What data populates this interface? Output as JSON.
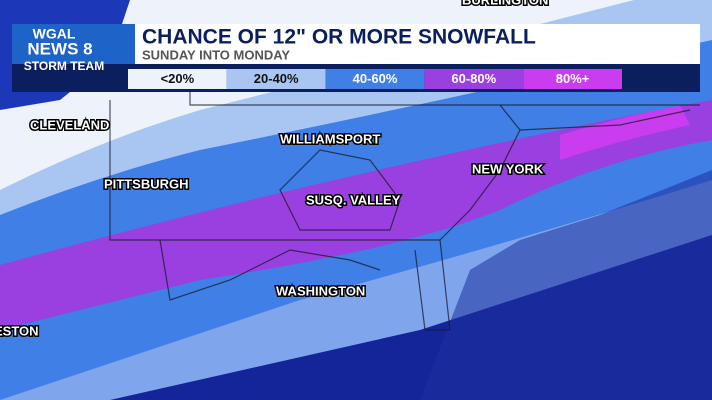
{
  "header": {
    "logo": [
      "WGAL",
      "NEWS 8",
      "STORM TEAM"
    ],
    "title": "CHANCE OF 12\" OR MORE SNOWFALL",
    "subtitle": "SUNDAY INTO MONDAY"
  },
  "legend": {
    "items": [
      {
        "label": "<20%",
        "color": "#eef3fb"
      },
      {
        "label": "20-40%",
        "color": "#a9c6f2"
      },
      {
        "label": "40-60%",
        "color": "#3f7fe6"
      },
      {
        "label": "60-80%",
        "color": "#9a3fe0"
      },
      {
        "label": "80%+",
        "color": "#c93cf0"
      }
    ]
  },
  "cities": [
    "BURLINGTON",
    "CLEVELAND",
    "WILLIAMSPORT",
    "PITTSBURGH",
    "NEW YORK",
    "SUSQ. VALLEY",
    "WASHINGTON",
    "ESTON"
  ]
}
